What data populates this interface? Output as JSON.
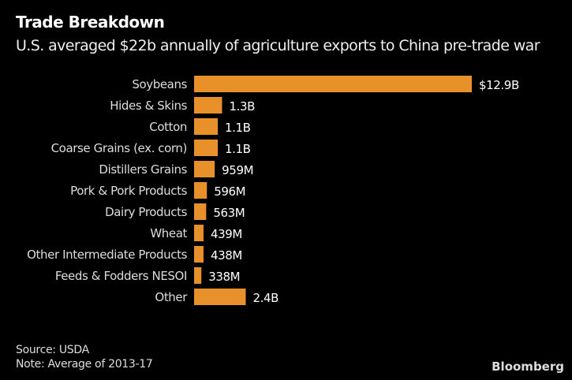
{
  "title": "Trade Breakdown",
  "subtitle": "U.S. averaged $22b annually of agriculture exports to China pre-trade war",
  "source": "Source: USDA",
  "note": "Note: Average of 2013-17",
  "logo": "Bloomberg",
  "chart_data": {
    "type": "bar",
    "orientation": "horizontal",
    "categories": [
      "Soybeans",
      "Hides & Skins",
      "Cotton",
      "Coarse Grains (ex. corn)",
      "Distillers Grains",
      "Pork & Pork Products",
      "Dairy Products",
      "Wheat",
      "Other Intermediate Products",
      "Feeds & Fodders NESOI",
      "Other"
    ],
    "values": [
      12.9,
      1.3,
      1.1,
      1.1,
      0.959,
      0.596,
      0.563,
      0.439,
      0.438,
      0.338,
      2.4
    ],
    "data_labels": [
      "$12.9B",
      "1.3B",
      "1.1B",
      "1.1B",
      "959M",
      "596M",
      "563M",
      "439M",
      "438M",
      "338M",
      "2.4B"
    ],
    "unit": "billion USD",
    "bar_color": "#E8902A",
    "grid": false,
    "legend": "none"
  }
}
